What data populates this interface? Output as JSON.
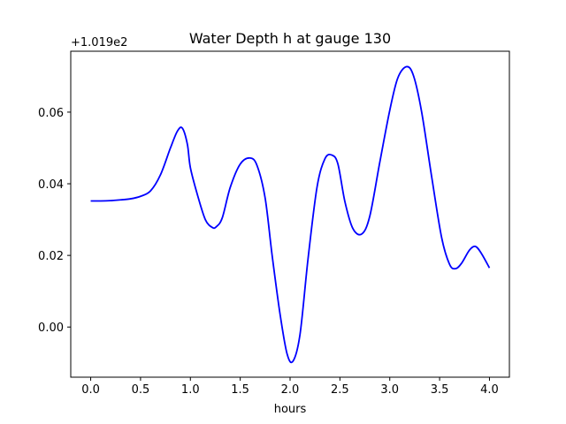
{
  "chart_data": {
    "type": "line",
    "title": "Water Depth h at gauge 130",
    "xlabel": "hours",
    "ylabel": "",
    "y_offset_label": "+1.019e2",
    "xlim": [
      -0.2,
      4.2
    ],
    "ylim": [
      -0.014,
      0.077
    ],
    "xticks": [
      0.0,
      0.5,
      1.0,
      1.5,
      2.0,
      2.5,
      3.0,
      3.5,
      4.0
    ],
    "xtick_labels": [
      "0.0",
      "0.5",
      "1.0",
      "1.5",
      "2.0",
      "2.5",
      "3.0",
      "3.5",
      "4.0"
    ],
    "yticks": [
      0.0,
      0.02,
      0.04,
      0.06
    ],
    "ytick_labels": [
      "0.00",
      "0.02",
      "0.04",
      "0.06"
    ],
    "grid": false,
    "series": [
      {
        "color": "#0000ff",
        "x": [
          0.0,
          0.1,
          0.2,
          0.3,
          0.4,
          0.5,
          0.6,
          0.7,
          0.8,
          0.87,
          0.92,
          0.97,
          1.0,
          1.07,
          1.15,
          1.22,
          1.26,
          1.32,
          1.4,
          1.5,
          1.6,
          1.67,
          1.75,
          1.82,
          1.9,
          1.97,
          2.03,
          2.1,
          2.18,
          2.27,
          2.35,
          2.42,
          2.48,
          2.55,
          2.63,
          2.72,
          2.8,
          2.9,
          3.0,
          3.08,
          3.17,
          3.24,
          3.32,
          3.42,
          3.52,
          3.6,
          3.66,
          3.72,
          3.8,
          3.86,
          3.92,
          4.0
        ],
        "y": [
          0.0352,
          0.0352,
          0.0353,
          0.0355,
          0.0358,
          0.0365,
          0.038,
          0.0425,
          0.05,
          0.0547,
          0.0555,
          0.051,
          0.0445,
          0.037,
          0.03,
          0.0278,
          0.028,
          0.0305,
          0.039,
          0.0455,
          0.0472,
          0.045,
          0.036,
          0.02,
          0.0035,
          -0.0075,
          -0.0095,
          -0.002,
          0.019,
          0.039,
          0.047,
          0.048,
          0.0455,
          0.035,
          0.0275,
          0.026,
          0.031,
          0.046,
          0.0605,
          0.0695,
          0.0727,
          0.07,
          0.06,
          0.042,
          0.025,
          0.0175,
          0.0163,
          0.0178,
          0.0215,
          0.0225,
          0.0205,
          0.0165
        ]
      }
    ]
  }
}
